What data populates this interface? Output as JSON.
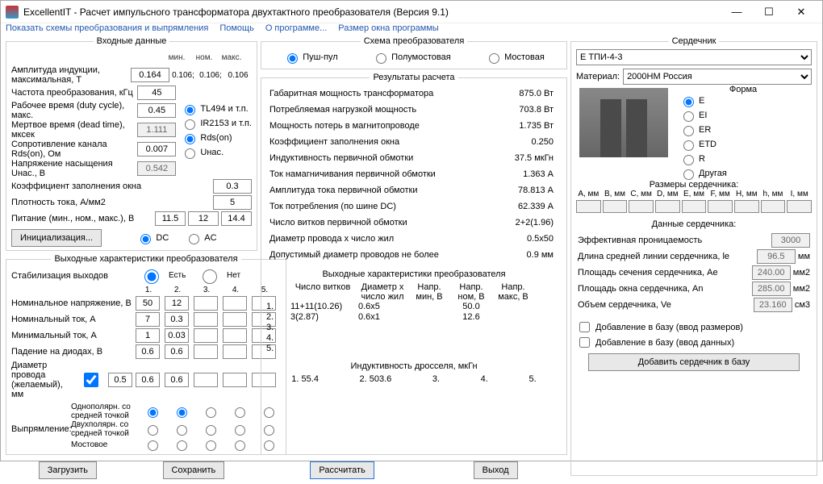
{
  "window": {
    "title": "ExcellentIT - Расчет импульсного трансформатора двухтактного преобразователя (Версия 9.1)"
  },
  "menu": {
    "schemes": "Показать схемы преобразования и выпрямления",
    "help": "Помощь",
    "about": "О программе...",
    "winsize": "Размер окна программы"
  },
  "input": {
    "legend": "Входные данные",
    "cols": {
      "min": "мин.",
      "nom": "ном.",
      "max": "макс."
    },
    "b_max": {
      "label": "Амплитуда индукции, максимальная, Т",
      "val": "0.164",
      "min": "0.106;",
      "nom": "0.106;",
      "max": "0.106"
    },
    "freq": {
      "label": "Частота преобразования, кГц",
      "val": "45"
    },
    "duty": {
      "label": "Рабочее время (duty cycle), макс.",
      "val": "0.45"
    },
    "dead": {
      "label": "Мертвое время (dead time), мксек",
      "val": "1.111"
    },
    "rds": {
      "label": "Сопротивление канала Rds(on), Ом",
      "val": "0.007"
    },
    "usat": {
      "label": "Напряжение насыщения Uнас., В",
      "val": "0.542"
    },
    "kwin": {
      "label": "Коэффициент заполнения окна",
      "val": "0.3"
    },
    "jcur": {
      "label": "Плотность тока, А/мм2",
      "val": "5"
    },
    "supply": {
      "label": "Питание (мин., ном., макс.), В",
      "min": "11.5",
      "nom": "12",
      "max": "14.4"
    },
    "controller": {
      "tl494": "TL494 и т.п.",
      "ir2153": "IR2153 и т.п.",
      "rdson": "Rds(on)",
      "usat": "Uнас."
    },
    "dcac": {
      "dc": "DC",
      "ac": "AC"
    },
    "init_btn": "Инициализация..."
  },
  "outchar": {
    "legend": "Выходные характеристики преобразователя",
    "stab": {
      "label": "Стабилизация выходов",
      "yes": "Есть",
      "no": "Нет"
    },
    "cols": [
      "1.",
      "2.",
      "3.",
      "4.",
      "5."
    ],
    "vnom": {
      "label": "Номинальное напряжение, В",
      "v": [
        "50",
        "12",
        "",
        "",
        ""
      ]
    },
    "inom": {
      "label": "Номинальный ток, А",
      "v": [
        "7",
        "0.3",
        "",
        "",
        ""
      ]
    },
    "imin": {
      "label": "Минимальный ток, А",
      "v": [
        "1",
        "0.03",
        "",
        "",
        ""
      ]
    },
    "vdrop": {
      "label": "Падение на диодах, В",
      "v": [
        "0.6",
        "0.6",
        "",
        "",
        ""
      ]
    },
    "dwire": {
      "label": "Диаметр провода (желаемый), мм",
      "chk": true,
      "d0": "0.5",
      "v": [
        "0.6",
        "0.6",
        "",
        "",
        ""
      ]
    },
    "rect": {
      "label": "Выпрямление:",
      "types": [
        "Однополярн. со средней точкой",
        "Двухполярн. со средней точкой",
        "Мостовое"
      ],
      "sel": [
        0,
        0,
        0,
        0,
        0
      ]
    }
  },
  "buttons": {
    "load": "Загрузить",
    "save": "Сохранить",
    "calc": "Рассчитать",
    "exit": "Выход",
    "addcore": "Добавить сердечник в базу"
  },
  "scheme": {
    "legend": "Схема преобразователя",
    "opts": {
      "pushpull": "Пуш-пул",
      "halfbridge": "Полумостовая",
      "bridge": "Мостовая"
    }
  },
  "results": {
    "legend": "Результаты расчета",
    "rows": [
      [
        "Габаритная мощность трансформатора",
        "875.0 Вт"
      ],
      [
        "Потребляемая нагрузкой мощность",
        "703.8 Вт"
      ],
      [
        "Мощность потерь в магнитопроводе",
        "1.735 Вт"
      ],
      [
        "Коэффициент заполнения окна",
        "0.250"
      ],
      [
        "Индуктивность первичной обмотки",
        "37.5 мкГн"
      ],
      [
        "Ток намагничивания первичной обмотки",
        "1.363 А"
      ],
      [
        "Амплитуда тока первичной обмотки",
        "78.813 А"
      ],
      [
        "Ток потребления (по шине DC)",
        "62.339 А"
      ],
      [
        "Число витков первичной обмотки",
        "2+2(1.96)"
      ],
      [
        "Диаметр провода x число жил",
        "0.5x50"
      ],
      [
        "Допустимый диаметр проводов не более",
        "0.9 мм"
      ]
    ],
    "out_legend": "Выходные характеристики преобразователя",
    "out_hdr": {
      "turns": "Число витков",
      "dxn": "Диаметр x число жил",
      "vmin": "Напр. мин, В",
      "vnom": "Напр. ном, В",
      "vmax": "Напр. макс, В"
    },
    "out_rows": [
      [
        "1.",
        "11+11(10.26)",
        "0.6x5",
        "",
        "50.0",
        ""
      ],
      [
        "2.",
        "3(2.87)",
        "0.6x1",
        "",
        "12.6",
        ""
      ],
      [
        "3.",
        "",
        "",
        "",
        "",
        ""
      ],
      [
        "4.",
        "",
        "",
        "",
        "",
        ""
      ],
      [
        "5.",
        "",
        "",
        "",
        "",
        ""
      ]
    ],
    "inductor": {
      "label": "Индуктивность дросселя, мкГн",
      "vals": [
        "1.  55.4",
        "2.  503.6",
        "3.",
        "4.",
        "5."
      ]
    }
  },
  "core": {
    "legend": "Сердечник",
    "select": "Е ТПИ-4-3",
    "material_label": "Материал:",
    "material": "2000НМ Россия",
    "shape_label": "Форма",
    "shapes": [
      "E",
      "EI",
      "ER",
      "ETD",
      "R",
      "Другая"
    ],
    "dims_legend": "Размеры сердечника:",
    "dims": [
      "A, мм",
      "B, мм",
      "C, мм",
      "D, мм",
      "E, мм",
      "F, мм",
      "H, мм",
      "h, мм",
      "I, мм"
    ],
    "data_legend": "Данные сердечника:",
    "perm": {
      "label": "Эффективная проницаемость",
      "val": "3000"
    },
    "le": {
      "label": "Длина средней линии сердечника, le",
      "val": "96.5",
      "unit": "мм"
    },
    "ae": {
      "label": "Площадь сечения сердечника, Ae",
      "val": "240.00",
      "unit": "мм2"
    },
    "an": {
      "label": "Площадь окна сердечника, An",
      "val": "285.00",
      "unit": "мм2"
    },
    "ve": {
      "label": "Объем сердечника, Ve",
      "val": "23.160",
      "unit": "см3"
    },
    "add_dims": "Добавление в базу (ввод размеров)",
    "add_data": "Добавление в базу (ввод данных)"
  }
}
